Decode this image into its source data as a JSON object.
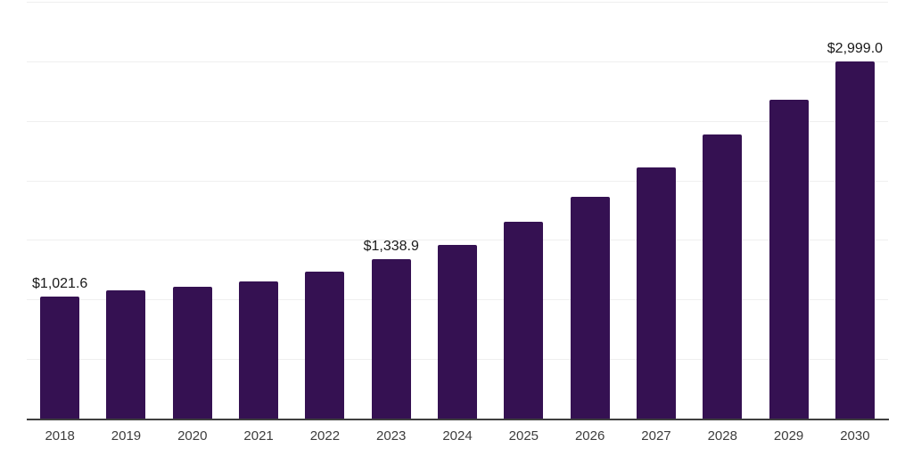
{
  "chart_data": {
    "type": "bar",
    "title": "",
    "xlabel": "",
    "ylabel": "",
    "categories": [
      "2018",
      "2019",
      "2020",
      "2021",
      "2022",
      "2023",
      "2024",
      "2025",
      "2026",
      "2027",
      "2028",
      "2029",
      "2030"
    ],
    "values": [
      1021.6,
      1077,
      1107,
      1155,
      1234,
      1338.9,
      1458,
      1653,
      1862,
      2109,
      2386,
      2677,
      2999.0
    ],
    "data_labels": [
      "$1,021.6",
      "",
      "",
      "",
      "",
      "$1,338.9",
      "",
      "",
      "",
      "",
      "",
      "",
      "$2,999.0"
    ],
    "ylim": [
      0,
      3500
    ],
    "gridline_interval": 500,
    "grid": true,
    "legend": false,
    "y_tick_labels_visible": false
  },
  "style": {
    "bar_color": "#351152",
    "gridline_color": "#efefef",
    "axis_color": "#3f3f3f",
    "tick_label_color": "#3d3d3d",
    "data_label_color": "#1a1a1a",
    "background_color": "#ffffff"
  }
}
